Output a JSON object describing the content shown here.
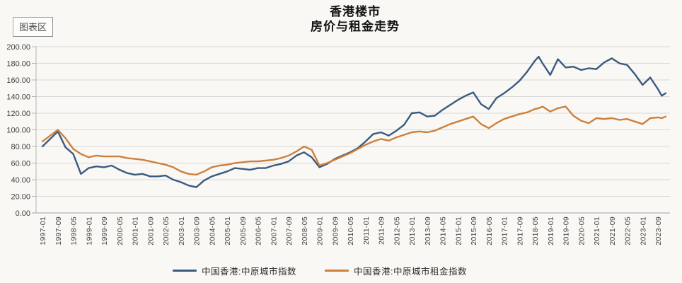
{
  "window": {
    "area_tooltip": "图表区"
  },
  "chart": {
    "title_line1": "香港楼市",
    "title_line2": "房价与租金走势"
  },
  "chart_data": {
    "type": "line",
    "title": "香港楼市 房价与租金走势",
    "xlabel": "",
    "ylabel": "",
    "grid": "horizontal",
    "legend_position": "bottom",
    "y_axis": {
      "min": 0,
      "max": 200,
      "step": 20,
      "tick_labels": [
        "200.00",
        "180.00",
        "160.00",
        "140.00",
        "120.00",
        "100.00",
        "80.00",
        "60.00",
        "40.00",
        "20.00",
        "0.00"
      ]
    },
    "x_axis": {
      "start_month": "1997-01",
      "tick_step_months": 8,
      "tick_labels": [
        "1997-01",
        "1997-09",
        "1998-05",
        "1999-01",
        "1999-09",
        "2000-05",
        "2001-01",
        "2001-09",
        "2002-05",
        "2003-01",
        "2003-09",
        "2004-05",
        "2005-01",
        "2005-09",
        "2006-05",
        "2007-01",
        "2007-09",
        "2008-05",
        "2009-01",
        "2009-09",
        "2010-05",
        "2011-01",
        "2011-09",
        "2012-05",
        "2013-01",
        "2013-09",
        "2014-05",
        "2015-01",
        "2015-09",
        "2016-05",
        "2017-01",
        "2017-09",
        "2018-05",
        "2019-01",
        "2019-09",
        "2020-05",
        "2021-01",
        "2021-09",
        "2022-05",
        "2023-01",
        "2023-09"
      ]
    },
    "x_months": [
      0,
      4,
      8,
      12,
      16,
      20,
      24,
      28,
      32,
      36,
      40,
      44,
      48,
      52,
      56,
      60,
      64,
      68,
      72,
      76,
      80,
      84,
      88,
      92,
      96,
      100,
      104,
      108,
      112,
      116,
      120,
      124,
      128,
      132,
      136,
      140,
      144,
      148,
      152,
      156,
      160,
      164,
      168,
      172,
      176,
      180,
      184,
      188,
      192,
      196,
      200,
      204,
      208,
      212,
      216,
      220,
      224,
      228,
      232,
      236,
      240,
      244,
      248,
      252,
      256,
      258,
      260,
      264,
      268,
      272,
      276,
      280,
      284,
      288,
      292,
      296,
      300,
      304,
      308,
      312,
      316,
      320,
      322,
      324
    ],
    "series": [
      {
        "name": "中国香港:中原城市指数",
        "color": "#3b5a80",
        "values": [
          80,
          89,
          98,
          79,
          71,
          47,
          54,
          56,
          55,
          57,
          52,
          48,
          46,
          47,
          44,
          44,
          45,
          40,
          37,
          33,
          31,
          39,
          44,
          47,
          50,
          54,
          53,
          52,
          54,
          54,
          57,
          59,
          62,
          69,
          73,
          67,
          55,
          59,
          65,
          69,
          73,
          78,
          86,
          95,
          97,
          93,
          99,
          106,
          120,
          121,
          116,
          117,
          124,
          130,
          136,
          141,
          145,
          131,
          125,
          138,
          144,
          151,
          159,
          170,
          183,
          188,
          180,
          166,
          185,
          175,
          176,
          172,
          174,
          173,
          181,
          186,
          180,
          178,
          167,
          154,
          163,
          149,
          141,
          144
        ]
      },
      {
        "name": "中国香港:中原城市租金指数",
        "color": "#cd803e",
        "values": [
          86,
          93,
          100,
          90,
          77,
          71,
          67,
          69,
          68,
          68,
          68,
          66,
          65,
          64,
          62,
          60,
          58,
          55,
          50,
          47,
          46,
          50,
          55,
          57,
          58,
          60,
          61,
          62,
          62,
          63,
          64,
          66,
          69,
          74,
          80,
          76,
          57,
          60,
          64,
          68,
          72,
          77,
          82,
          86,
          89,
          87,
          91,
          94,
          97,
          98,
          97,
          99,
          103,
          107,
          110,
          113,
          116,
          107,
          102,
          108,
          113,
          116,
          119,
          121,
          125,
          126,
          128,
          122,
          126,
          128,
          117,
          111,
          108,
          114,
          113,
          114,
          112,
          113,
          110,
          107,
          114,
          115,
          114,
          116
        ]
      }
    ],
    "colors": {
      "gridline": "#d9d9d9",
      "axis": "#b3b3b3",
      "tick_text": "#3f3f3f"
    }
  }
}
